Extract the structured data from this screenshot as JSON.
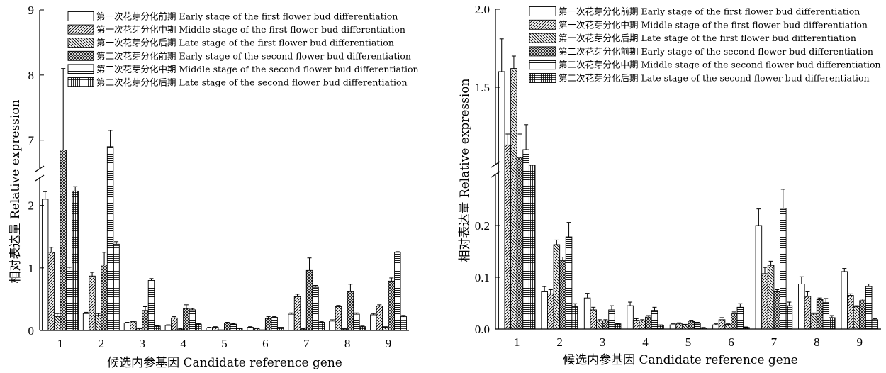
{
  "chart_data": [
    {
      "type": "bar",
      "panel": "left",
      "xlabel": "候选内参基因 Candidate reference gene",
      "ylabel": "相对表达量 Relative expression",
      "categories": [
        "1",
        "2",
        "3",
        "4",
        "5",
        "6",
        "7",
        "8",
        "9"
      ],
      "axis_break": {
        "lower_range": [
          0,
          2.45
        ],
        "upper_range": [
          6.55,
          9
        ]
      },
      "yticks_lower": [
        "0",
        "1",
        "2"
      ],
      "yticks_upper": [
        "7",
        "8",
        "9"
      ],
      "yticks_lower_values": [
        0,
        1,
        2
      ],
      "yticks_upper_values": [
        7,
        8,
        9
      ],
      "legend_position": "top-right",
      "series": [
        {
          "name": "第一次花芽分化前期 Early stage of the first flower bud differentiation",
          "pattern": "blank",
          "values": [
            2.1,
            0.27,
            0.12,
            0.08,
            0.04,
            0.05,
            0.26,
            0.15,
            0.25
          ],
          "errors": [
            0.12,
            0.02,
            0.01,
            0.01,
            0.01,
            0.01,
            0.02,
            0.02,
            0.02
          ]
        },
        {
          "name": "第一次花芽分化中期 Middle stage of the first flower bud differentiation",
          "pattern": "diag-fwd",
          "values": [
            1.25,
            0.87,
            0.14,
            0.2,
            0.05,
            0.03,
            0.54,
            0.38,
            0.39
          ],
          "errors": [
            0.08,
            0.06,
            0.01,
            0.02,
            0.01,
            0.01,
            0.04,
            0.02,
            0.02
          ]
        },
        {
          "name": "第一次花芽分化后期 Late stage of the first flower bud differentiation",
          "pattern": "diag-back",
          "values": [
            0.22,
            0.24,
            0.03,
            0.02,
            0.01,
            0.01,
            0.02,
            0.02,
            0.05
          ],
          "errors": [
            0.05,
            0.03,
            0.01,
            0.01,
            0.0,
            0.0,
            0.01,
            0.01,
            0.01
          ]
        },
        {
          "name": "第二次花芽分化前期 Early stage of the second flower bud differentiation",
          "pattern": "cross",
          "values": [
            6.85,
            1.05,
            0.32,
            0.35,
            0.12,
            0.19,
            0.96,
            0.62,
            0.79
          ],
          "errors": [
            1.25,
            0.2,
            0.06,
            0.06,
            0.01,
            0.03,
            0.2,
            0.12,
            0.05
          ]
        },
        {
          "name": "第二次花芽分化中期 Middle stage of the second flower bud differentiation",
          "pattern": "horizontal",
          "values": [
            0.98,
            6.9,
            0.8,
            0.33,
            0.1,
            0.21,
            0.69,
            0.26,
            1.25
          ],
          "errors": [
            0.03,
            0.25,
            0.03,
            0.02,
            0.01,
            0.01,
            0.03,
            0.02,
            0.01
          ]
        },
        {
          "name": "第二次花芽分化后期 Late stage of the second flower bud differentiation",
          "pattern": "grid",
          "values": [
            2.23,
            1.38,
            0.07,
            0.1,
            0.03,
            0.05,
            0.13,
            0.06,
            0.22
          ],
          "errors": [
            0.07,
            0.04,
            0.01,
            0.01,
            0.0,
            0.0,
            0.01,
            0.01,
            0.02
          ]
        }
      ]
    },
    {
      "type": "bar",
      "panel": "right",
      "xlabel": "候选内参基因 Candidate reference gene",
      "ylabel": "相对表达量 Relative expression",
      "categories": [
        "1",
        "2",
        "3",
        "4",
        "5",
        "6",
        "7",
        "8",
        "9"
      ],
      "axis_break": {
        "lower_range": [
          0,
          0.3
        ],
        "upper_range": [
          1.0,
          2.0
        ]
      },
      "yticks_lower": [
        "0.0",
        "0.1",
        "0.2"
      ],
      "yticks_upper": [
        "1.5",
        "2.0"
      ],
      "yticks_lower_values": [
        0,
        0.1,
        0.2
      ],
      "yticks_upper_values": [
        1.5,
        2.0
      ],
      "legend_position": "top-right",
      "series": [
        {
          "name": "第一次花芽分化前期 Early stage of the first flower bud differentiation",
          "pattern": "blank",
          "values": [
            1.6,
            0.072,
            0.06,
            0.045,
            0.008,
            0.008,
            0.2,
            0.087,
            0.111
          ],
          "errors": [
            0.21,
            0.01,
            0.009,
            0.007,
            0.002,
            0.002,
            0.032,
            0.014,
            0.006
          ]
        },
        {
          "name": "第一次花芽分化中期 Middle stage of the first flower bud differentiation",
          "pattern": "diag-fwd",
          "values": [
            1.13,
            0.068,
            0.037,
            0.017,
            0.01,
            0.018,
            0.107,
            0.063,
            0.065
          ],
          "errors": [
            0.07,
            0.008,
            0.005,
            0.003,
            0.002,
            0.004,
            0.012,
            0.009,
            0.003
          ]
        },
        {
          "name": "第一次花芽分化后期 Late stage of the first flower bud differentiation",
          "pattern": "diag-back",
          "values": [
            1.62,
            0.163,
            0.016,
            0.016,
            0.008,
            0.009,
            0.123,
            0.029,
            0.043
          ],
          "errors": [
            0.08,
            0.009,
            0.002,
            0.002,
            0.001,
            0.001,
            0.008,
            0.002,
            0.002
          ]
        },
        {
          "name": "第二次花芽分化前期 Early stage of the second flower bud differentiation",
          "pattern": "cross",
          "values": [
            1.05,
            0.132,
            0.016,
            0.023,
            0.015,
            0.03,
            0.072,
            0.057,
            0.055
          ],
          "errors": [
            0.15,
            0.007,
            0.002,
            0.003,
            0.002,
            0.003,
            0.004,
            0.003,
            0.003
          ]
        },
        {
          "name": "第二次花芽分化中期 Middle stage of the second flower bud differentiation",
          "pattern": "horizontal",
          "values": [
            1.1,
            0.178,
            0.037,
            0.036,
            0.011,
            0.042,
            0.233,
            0.051,
            0.082
          ],
          "errors": [
            0.16,
            0.028,
            0.008,
            0.006,
            0.002,
            0.007,
            0.037,
            0.008,
            0.005
          ]
        },
        {
          "name": "第二次花芽分化后期 Late stage of the second flower bud differentiation",
          "pattern": "grid",
          "values": [
            1.0,
            0.043,
            0.01,
            0.007,
            0.002,
            0.003,
            0.045,
            0.022,
            0.018
          ],
          "errors": [
            0.0,
            0.006,
            0.001,
            0.001,
            0.001,
            0.001,
            0.007,
            0.004,
            0.002
          ]
        }
      ]
    }
  ]
}
